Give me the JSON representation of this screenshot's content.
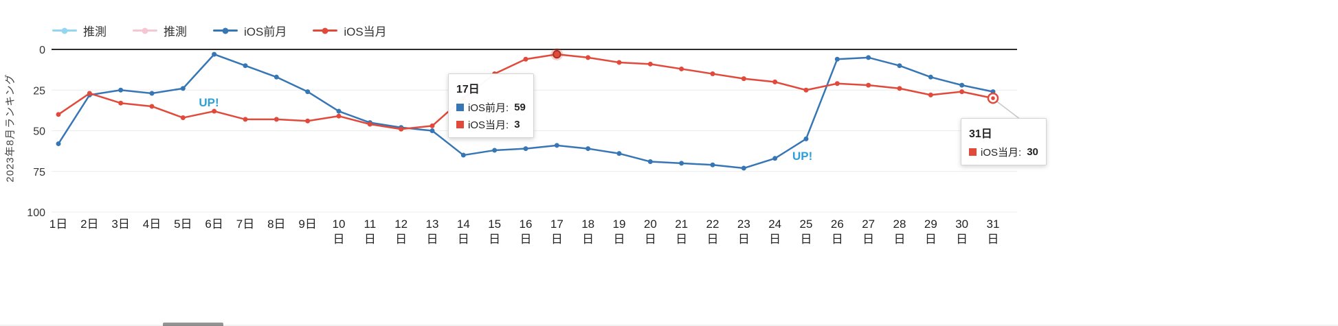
{
  "chart_data": {
    "type": "line",
    "title": "",
    "ylabel": "2023年8月ランキング",
    "xlabel": "",
    "y_axis": {
      "ticks": [
        0,
        25,
        50,
        75,
        100
      ],
      "min": 0,
      "max": 100,
      "inverted": true
    },
    "categories": [
      "1日",
      "2日",
      "3日",
      "4日",
      "5日",
      "6日",
      "7日",
      "8日",
      "9日",
      "10日",
      "11日",
      "12日",
      "13日",
      "14日",
      "15日",
      "16日",
      "17日",
      "18日",
      "19日",
      "20日",
      "21日",
      "22日",
      "23日",
      "24日",
      "25日",
      "26日",
      "27日",
      "28日",
      "29日",
      "30日",
      "31日"
    ],
    "series": [
      {
        "name": "推測",
        "color": "#92d7ef",
        "values": []
      },
      {
        "name": "推測",
        "color": "#f6c6d2",
        "values": []
      },
      {
        "name": "iOS前月",
        "color": "#3776b4",
        "values": [
          58,
          28,
          25,
          27,
          24,
          3,
          10,
          17,
          26,
          38,
          45,
          48,
          50,
          65,
          62,
          61,
          59,
          61,
          64,
          69,
          70,
          71,
          73,
          67,
          55,
          6,
          5,
          10,
          17,
          22,
          26
        ]
      },
      {
        "name": "iOS当月",
        "color": "#e1493a",
        "values": [
          40,
          27,
          33,
          35,
          42,
          38,
          43,
          43,
          44,
          41,
          46,
          49,
          47,
          30,
          15,
          6,
          3,
          5,
          8,
          9,
          12,
          15,
          18,
          20,
          25,
          21,
          22,
          24,
          28,
          26,
          30
        ]
      }
    ],
    "legend_position": "top-left",
    "grid": "faint-horizontal"
  },
  "annotations": [
    {
      "text": "UP!",
      "day": 5.95,
      "rank": 34
    },
    {
      "text": "UP!",
      "day": 25.0,
      "rank": 67
    }
  ],
  "tooltips": [
    {
      "title": "17日",
      "rows": [
        {
          "color": "#3776b4",
          "label": "iOS前月: ",
          "value": "59"
        },
        {
          "color": "#e1493a",
          "label": "iOS当月: ",
          "value": "3"
        }
      ]
    },
    {
      "title": "31日",
      "rows": [
        {
          "color": "#e1493a",
          "label": "iOS当月: ",
          "value": "30"
        }
      ]
    }
  ],
  "highlights": [
    {
      "series": 3,
      "day": 17,
      "style": "emphasis"
    },
    {
      "series": 3,
      "day": 31,
      "style": "ring"
    }
  ]
}
